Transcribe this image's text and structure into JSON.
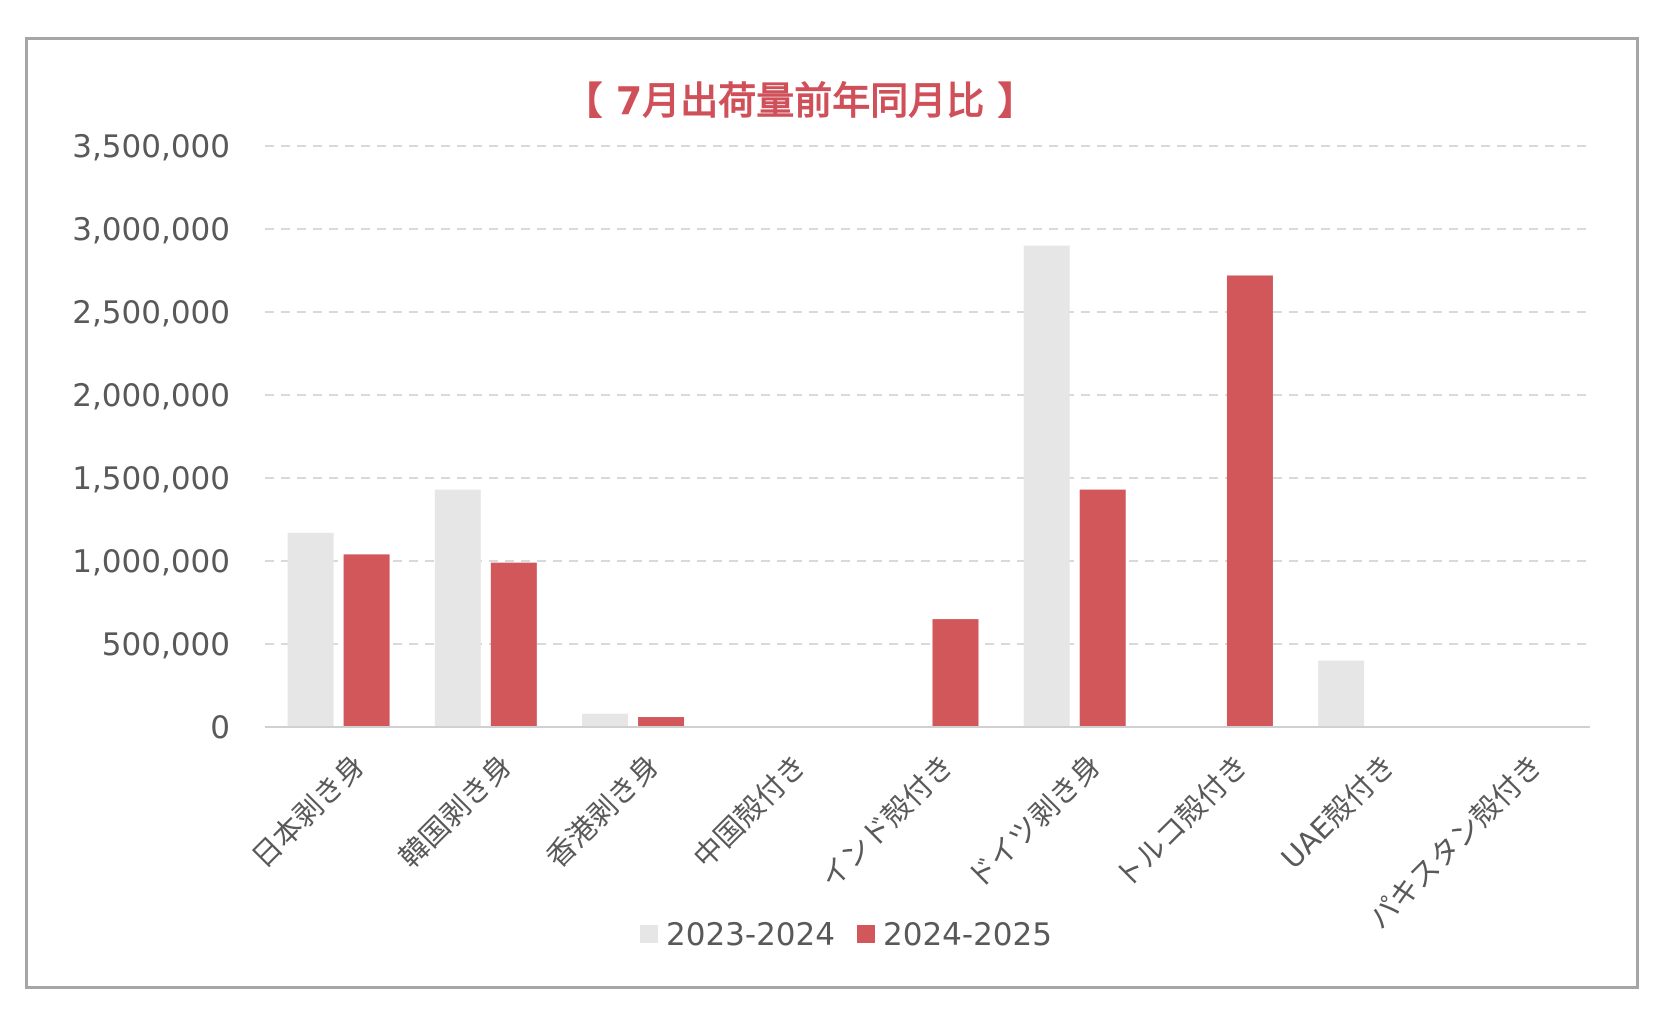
{
  "chart_data": {
    "type": "bar",
    "title": "【 7月出荷量前年同月比 】",
    "xlabel": "",
    "ylabel": "",
    "ylim": [
      0,
      3500000
    ],
    "yticks": [
      0,
      500000,
      1000000,
      1500000,
      2000000,
      2500000,
      3000000,
      3500000
    ],
    "ytick_labels": [
      "0",
      "500,000",
      "1,000,000",
      "1,500,000",
      "2,000,000",
      "2,500,000",
      "3,000,000",
      "3,500,000"
    ],
    "grid": true,
    "legend_position": "bottom",
    "categories": [
      "日本剥き身",
      "韓国剥き身",
      "香港剥き身",
      "中国殻付き",
      "インド殻付き",
      "ドイツ剥き身",
      "トルコ殻付き",
      "UAE殻付き",
      "パキスタン殻付き"
    ],
    "series": [
      {
        "name": "2023-2024",
        "color": "#e6e6e6",
        "values": [
          1170000,
          1430000,
          80000,
          0,
          0,
          2900000,
          0,
          400000,
          0
        ]
      },
      {
        "name": "2024-2025",
        "color": "#d1575b",
        "values": [
          1040000,
          990000,
          60000,
          0,
          650000,
          1430000,
          2720000,
          0,
          0
        ]
      }
    ]
  }
}
